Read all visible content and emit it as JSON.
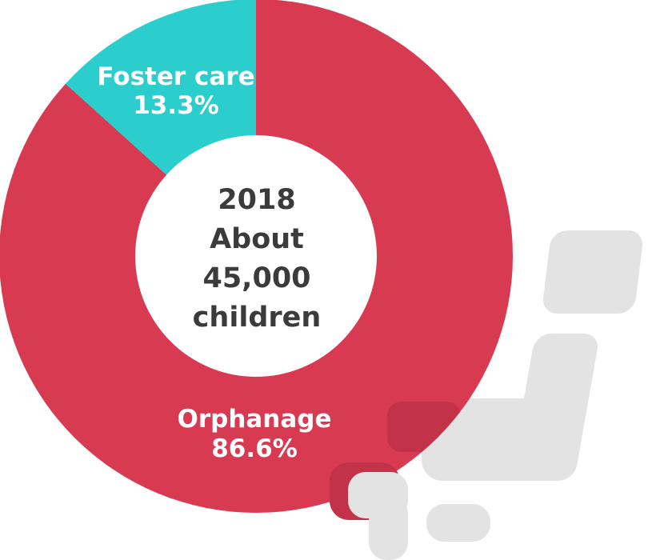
{
  "chart_data": {
    "type": "pie",
    "donut": true,
    "title": "",
    "center_lines": [
      "2018",
      "About",
      "45,000",
      "children"
    ],
    "slices": [
      {
        "label": "Orphanage",
        "value": 86.6,
        "display": "86.6%",
        "color": "#D83A52"
      },
      {
        "label": "Foster care",
        "value": 13.3,
        "display": "13.3%",
        "color": "#2BCDCD"
      }
    ],
    "start_angle_deg": 0,
    "label_position": "on-slice",
    "center_text": "2018 About 45,000 children"
  },
  "colors": {
    "orphanage_red": "#D83A52",
    "foster_teal": "#2BCDCD",
    "accent_dark_red": "#C23349",
    "decor_gray": "#E3E3E3",
    "center_text": "#3B3B3B",
    "background": "#FFFFFF"
  }
}
